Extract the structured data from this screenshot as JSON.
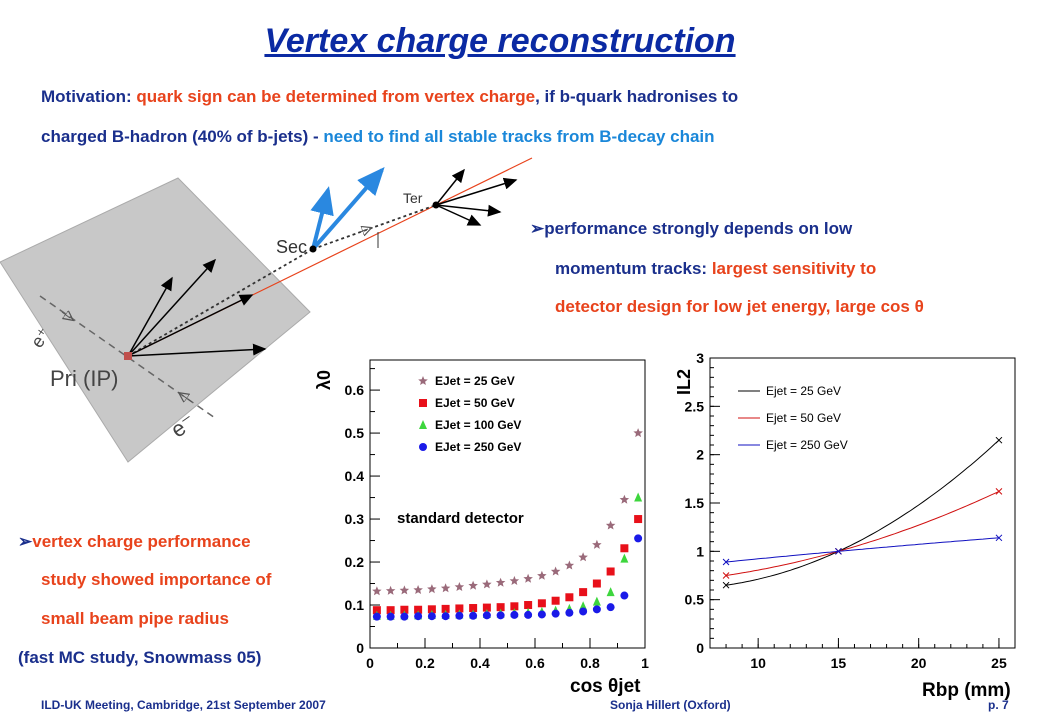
{
  "title": "Vertex charge reconstruction",
  "motivation": {
    "line1_a": "Motivation: ",
    "line1_b": "quark sign can be determined from vertex charge",
    "line1_c": ", if b-quark hadronises to",
    "line2_a": "charged B-hadron (40% of b-jets) - ",
    "line2_b": "need to find all stable tracks from B-decay chain"
  },
  "performance": {
    "bullet": "➢",
    "line1": "performance strongly depends on low",
    "line2_a": "momentum tracks: ",
    "line2_b": "largest sensitivity to",
    "line3": "detector design for low jet energy, large cos θ"
  },
  "vertex_note": {
    "bullet": "➢",
    "line1": "vertex charge performance",
    "line2": "study showed importance of",
    "line3": "small beam pipe radius",
    "line4": "(fast MC study, Snowmass 05)"
  },
  "diagram": {
    "label_sec": "Sec",
    "label_ter": "Ter",
    "label_pri": "Pri (IP)",
    "label_eplus": "e⁺",
    "label_eminus": "e⁻"
  },
  "footer": {
    "left": "ILD-UK Meeting, Cambridge, 21st September 2007",
    "mid": "Sonja Hillert (Oxford)",
    "right": "p. 7"
  },
  "chart_data": [
    {
      "type": "scatter",
      "title": "",
      "xlabel": "cos θjet",
      "ylabel": "λ0",
      "xlim": [
        0,
        1
      ],
      "ylim": [
        0,
        0.67
      ],
      "xticks": [
        "0",
        "0.2",
        "0.4",
        "0.6",
        "0.8",
        "1"
      ],
      "yticks": [
        "0",
        "0.1",
        "0.2",
        "0.3",
        "0.4",
        "0.5",
        "0.6"
      ],
      "annotation": "standard detector",
      "grid": false,
      "legend_position": "top-left",
      "x": [
        0.025,
        0.075,
        0.125,
        0.175,
        0.225,
        0.275,
        0.325,
        0.375,
        0.425,
        0.475,
        0.525,
        0.575,
        0.625,
        0.675,
        0.725,
        0.775,
        0.825,
        0.875,
        0.925,
        0.975
      ],
      "series": [
        {
          "name": "EJet = 25 GeV",
          "color": "#9a6a7a",
          "marker": "star",
          "values": [
            0.132,
            0.133,
            0.134,
            0.135,
            0.137,
            0.139,
            0.142,
            0.145,
            0.148,
            0.152,
            0.156,
            0.161,
            0.168,
            0.178,
            0.192,
            0.211,
            0.24,
            0.285,
            0.345,
            0.5
          ]
        },
        {
          "name": "EJet = 50 GeV",
          "color": "#e8101a",
          "marker": "square",
          "values": [
            0.088,
            0.088,
            0.089,
            0.089,
            0.09,
            0.091,
            0.092,
            0.093,
            0.094,
            0.095,
            0.097,
            0.1,
            0.104,
            0.11,
            0.118,
            0.13,
            0.15,
            0.178,
            0.232,
            0.3
          ]
        },
        {
          "name": "EJet = 100 GeV",
          "color": "#3dd63d",
          "marker": "triangle",
          "values": [
            0.075,
            0.075,
            0.076,
            0.076,
            0.077,
            0.077,
            0.078,
            0.078,
            0.079,
            0.08,
            0.081,
            0.082,
            0.084,
            0.087,
            0.091,
            0.097,
            0.108,
            0.13,
            0.208,
            0.35
          ]
        },
        {
          "name": "EJet = 250 GeV",
          "color": "#1a1ae8",
          "marker": "circle",
          "values": [
            0.073,
            0.073,
            0.073,
            0.074,
            0.074,
            0.074,
            0.075,
            0.075,
            0.076,
            0.076,
            0.077,
            0.077,
            0.078,
            0.08,
            0.082,
            0.085,
            0.09,
            0.095,
            0.122,
            0.255
          ]
        }
      ]
    },
    {
      "type": "line",
      "title": "",
      "xlabel": "Rbp (mm)",
      "ylabel": "IL2",
      "xlim": [
        7,
        26
      ],
      "ylim": [
        0,
        3
      ],
      "xticks": [
        "10",
        "15",
        "20",
        "25"
      ],
      "yticks": [
        "0",
        "0.5",
        "1",
        "1.5",
        "2",
        "2.5",
        "3"
      ],
      "grid": false,
      "legend_position": "top-left",
      "x": [
        8,
        15,
        25
      ],
      "series": [
        {
          "name": "Ejet = 25 GeV",
          "color": "#000000",
          "values": [
            0.65,
            1.0,
            2.15
          ]
        },
        {
          "name": "Ejet = 50 GeV",
          "color": "#d01010",
          "values": [
            0.75,
            1.0,
            1.62
          ]
        },
        {
          "name": "Ejet = 250 GeV",
          "color": "#1010c0",
          "values": [
            0.89,
            1.0,
            1.14
          ]
        }
      ]
    }
  ]
}
